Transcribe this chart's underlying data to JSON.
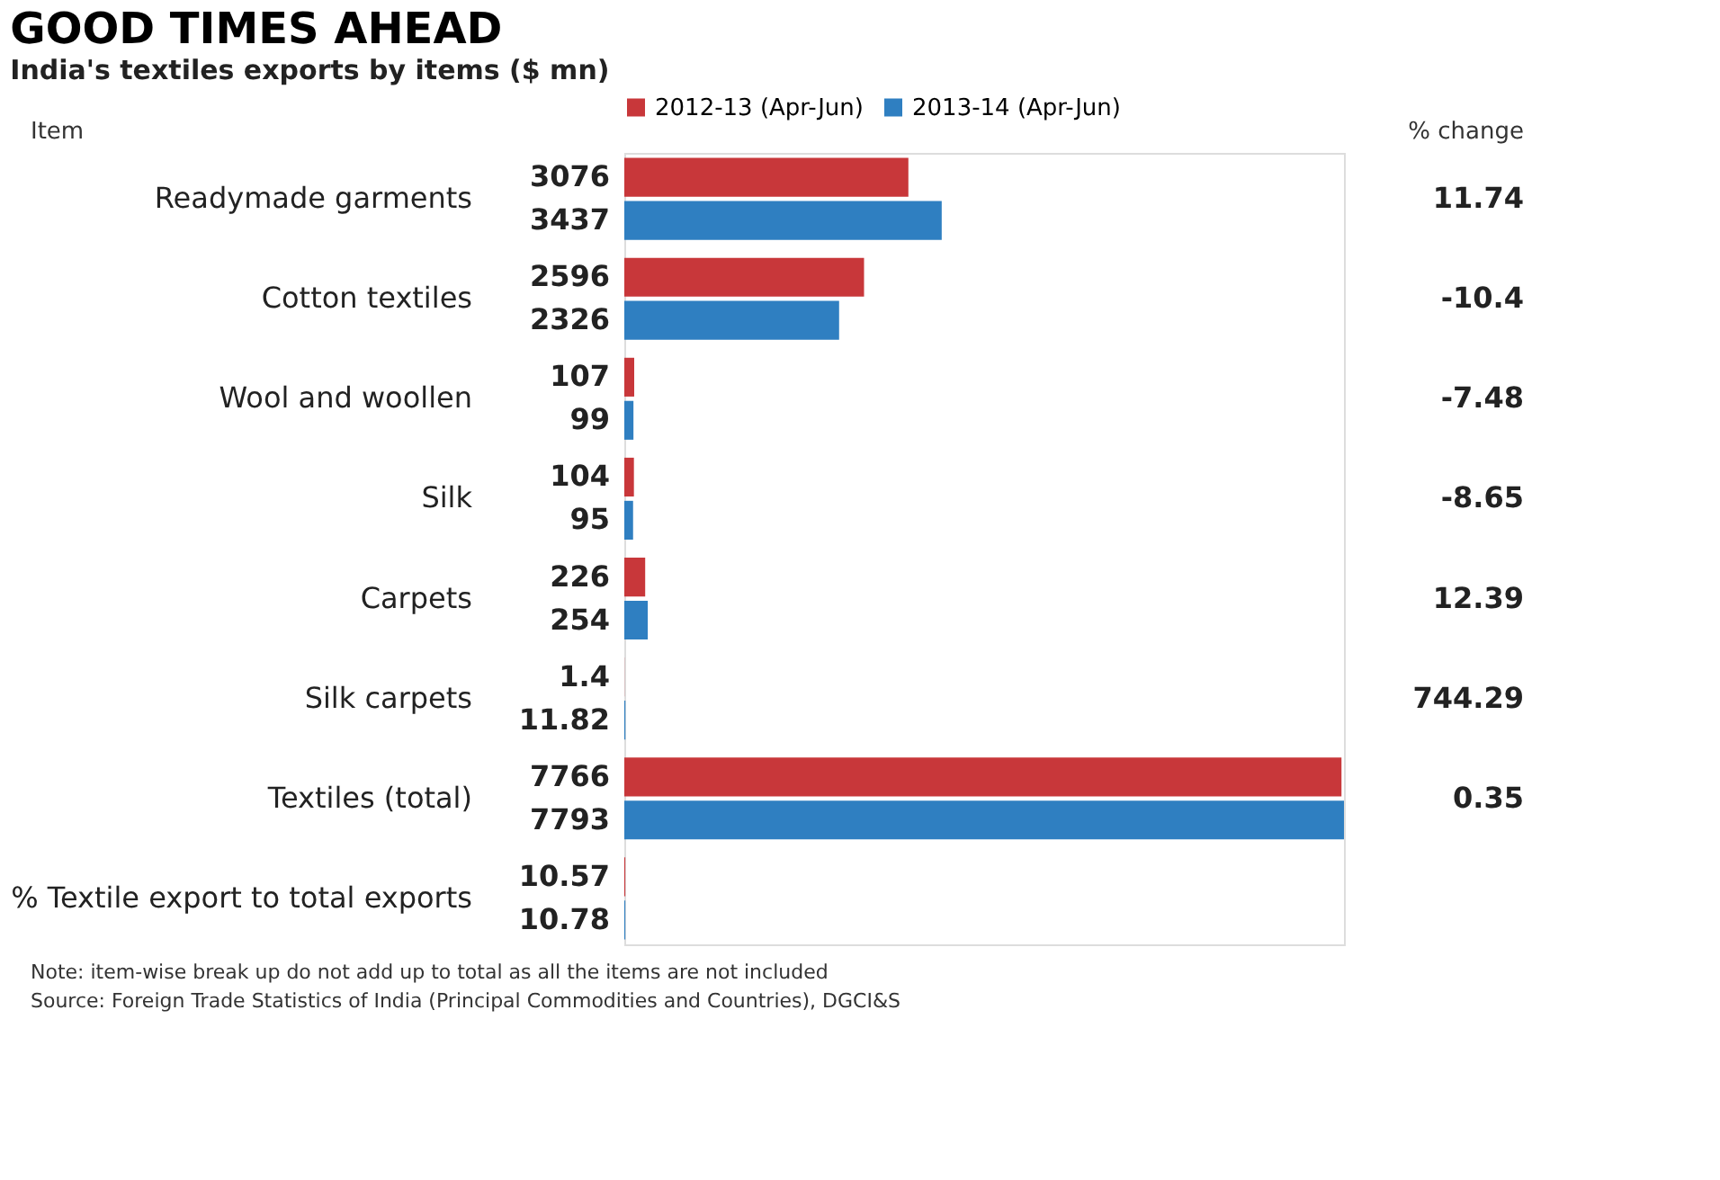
{
  "chart_data": {
    "type": "bar",
    "orientation": "horizontal",
    "title": "GOOD TIMES AHEAD",
    "subtitle": "India's textiles exports by items ($ mn)",
    "ylabel": "Item",
    "y2label": "% change",
    "categories": [
      "Readymade garments",
      "Cotton textiles",
      "Wool and woollen",
      "Silk",
      "Carpets",
      "Silk carpets",
      "Textiles (total)",
      "% Textile export to total exports"
    ],
    "series": [
      {
        "name": "2012-13 (Apr-Jun)",
        "color": "#c8373a",
        "values": [
          3076,
          2596,
          107,
          104,
          226,
          1.4,
          7766,
          10.57
        ]
      },
      {
        "name": "2013-14 (Apr-Jun)",
        "color": "#2f7fc1",
        "values": [
          3437,
          2326,
          99,
          95,
          254,
          11.82,
          7793,
          10.78
        ]
      }
    ],
    "data_labels": true,
    "legend": "top",
    "y2_categories": [
      "11.74",
      "-10.4",
      "-7.48",
      "-8.65",
      "12.39",
      "744.29",
      "0.35",
      null
    ],
    "annotations": [
      "Note: item-wise break up do not add up to total as all the items are not included",
      "Source: Foreign Trade Statistics of India (Principal Commodities and Countries), DGCI&S"
    ]
  }
}
